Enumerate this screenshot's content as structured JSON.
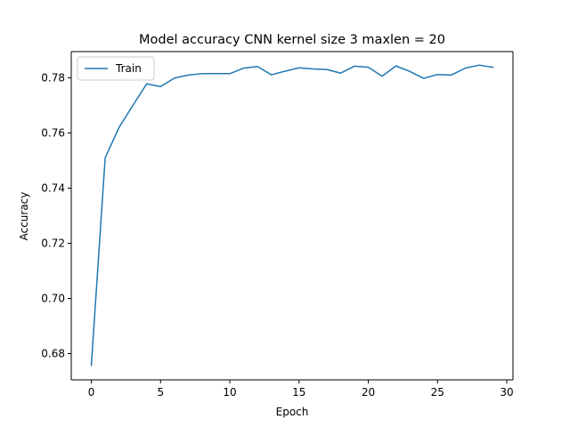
{
  "chart_data": {
    "type": "line",
    "title": "Model accuracy CNN kernel size 3 maxlen = 20",
    "xlabel": "Epoch",
    "ylabel": "Accuracy",
    "xlim": [
      -1.45,
      30.45
    ],
    "ylim": [
      0.6705,
      0.7895
    ],
    "xticks": [
      0,
      5,
      10,
      15,
      20,
      25,
      30
    ],
    "yticks": [
      0.68,
      0.7,
      0.72,
      0.74,
      0.76,
      0.78
    ],
    "ytick_labels": [
      "0.68",
      "0.70",
      "0.72",
      "0.74",
      "0.76",
      "0.78"
    ],
    "grid": false,
    "legend_position": "upper-left",
    "series": [
      {
        "name": "Train",
        "color": "#1f77b4",
        "x": [
          0,
          1,
          2,
          3,
          4,
          5,
          6,
          7,
          8,
          9,
          10,
          11,
          12,
          13,
          14,
          15,
          16,
          17,
          18,
          19,
          20,
          21,
          22,
          23,
          24,
          25,
          26,
          27,
          28,
          29
        ],
        "y": [
          0.6758,
          0.751,
          0.762,
          0.77,
          0.7778,
          0.7768,
          0.7799,
          0.781,
          0.7815,
          0.7815,
          0.7815,
          0.7835,
          0.7841,
          0.7811,
          0.7824,
          0.7836,
          0.7832,
          0.783,
          0.7817,
          0.7842,
          0.7838,
          0.7806,
          0.7843,
          0.7823,
          0.7798,
          0.7812,
          0.781,
          0.7835,
          0.7846,
          0.7838
        ]
      }
    ]
  }
}
